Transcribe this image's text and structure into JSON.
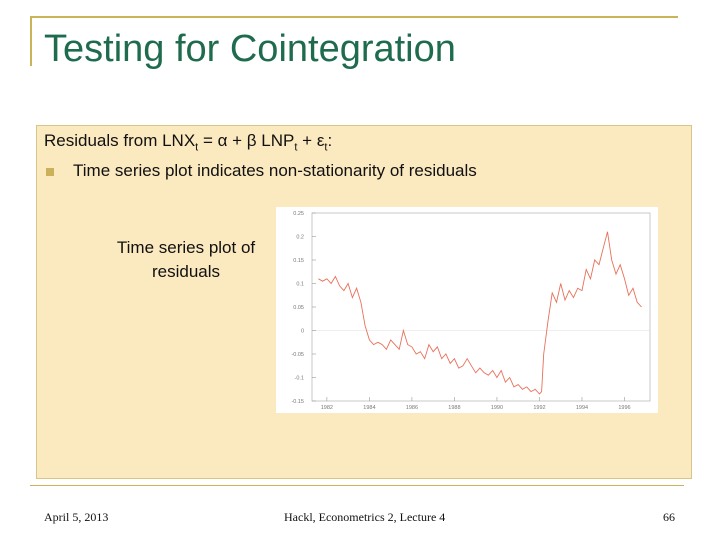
{
  "slide": {
    "title": "Testing for Cointegration",
    "line1": {
      "p1": "Residuals from LNX",
      "s1": "t",
      "p2": " = α + β LNP",
      "s2": "t",
      "p3": " + ε",
      "s3": "t",
      "p4": ":"
    },
    "bullet": "Time series plot indicates non-stationarity of residuals",
    "note": "Time series plot of residuals",
    "colors": {
      "title": "#1f6b4e",
      "accent": "#c9b45a",
      "panel": "#fbe9bf",
      "series": "#e8705a"
    }
  },
  "footer": {
    "date": "April 5, 2013",
    "center": "Hackl, Econometrics 2, Lecture 4",
    "page": "66"
  },
  "chart_data": {
    "type": "line",
    "ylabel": "",
    "y_ticks": [
      "0.25",
      "0.2",
      "0.15",
      "0.1",
      "0.05",
      "0",
      "-0.05",
      "-0.1",
      "-0.15"
    ],
    "x_ticks": [
      "1982",
      "1984",
      "1986",
      "1988",
      "1990",
      "1992",
      "1994",
      "1996"
    ],
    "ylim": [
      -0.15,
      0.25
    ],
    "xlim": [
      1981.3,
      1997.2
    ],
    "grid": false,
    "series": [
      {
        "color": "#e8705a",
        "x": [
          1981.6,
          1981.8,
          1982.0,
          1982.2,
          1982.4,
          1982.6,
          1982.8,
          1983.0,
          1983.2,
          1983.4,
          1983.6,
          1983.8,
          1984.0,
          1984.2,
          1984.4,
          1984.6,
          1984.8,
          1985.0,
          1985.2,
          1985.4,
          1985.6,
          1985.8,
          1986.0,
          1986.2,
          1986.4,
          1986.6,
          1986.8,
          1987.0,
          1987.2,
          1987.4,
          1987.6,
          1987.8,
          1988.0,
          1988.2,
          1988.4,
          1988.6,
          1988.8,
          1989.0,
          1989.2,
          1989.4,
          1989.6,
          1989.8,
          1990.0,
          1990.2,
          1990.4,
          1990.6,
          1990.8,
          1991.0,
          1991.2,
          1991.4,
          1991.6,
          1991.8,
          1992.0,
          1992.1,
          1992.2,
          1992.4,
          1992.6,
          1992.8,
          1993.0,
          1993.2,
          1993.4,
          1993.6,
          1993.8,
          1994.0,
          1994.2,
          1994.4,
          1994.6,
          1994.8,
          1995.0,
          1995.2,
          1995.4,
          1995.6,
          1995.8,
          1996.0,
          1996.2,
          1996.4,
          1996.6,
          1996.8
        ],
        "y": [
          0.11,
          0.105,
          0.11,
          0.1,
          0.115,
          0.095,
          0.085,
          0.1,
          0.07,
          0.09,
          0.06,
          0.01,
          -0.02,
          -0.03,
          -0.025,
          -0.03,
          -0.04,
          -0.02,
          -0.03,
          -0.04,
          0.0,
          -0.03,
          -0.035,
          -0.05,
          -0.045,
          -0.06,
          -0.03,
          -0.045,
          -0.035,
          -0.06,
          -0.05,
          -0.07,
          -0.06,
          -0.08,
          -0.075,
          -0.06,
          -0.075,
          -0.09,
          -0.08,
          -0.09,
          -0.095,
          -0.085,
          -0.1,
          -0.085,
          -0.11,
          -0.1,
          -0.12,
          -0.115,
          -0.125,
          -0.12,
          -0.13,
          -0.125,
          -0.135,
          -0.13,
          -0.05,
          0.02,
          0.08,
          0.06,
          0.1,
          0.065,
          0.085,
          0.07,
          0.09,
          0.085,
          0.13,
          0.11,
          0.15,
          0.14,
          0.175,
          0.21,
          0.15,
          0.12,
          0.14,
          0.11,
          0.075,
          0.09,
          0.06,
          0.05
        ]
      }
    ]
  }
}
